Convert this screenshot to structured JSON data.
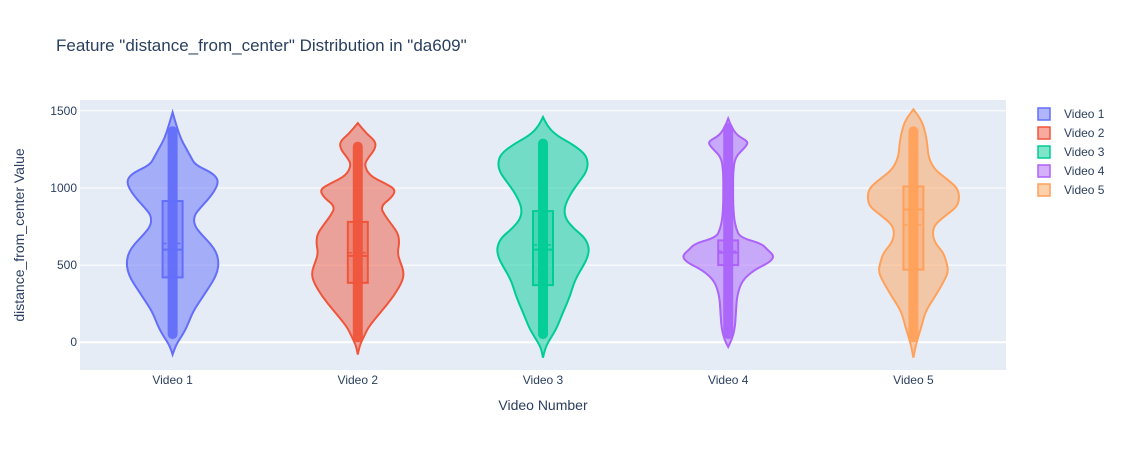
{
  "chart_data": {
    "type": "violin",
    "title": "Feature \"distance_from_center\" Distribution in \"da609\"",
    "xlabel": "Video Number",
    "ylabel": "distance_from_center Value",
    "categories": [
      "Video 1",
      "Video 2",
      "Video 3",
      "Video 4",
      "Video 5"
    ],
    "yticks": [
      0,
      500,
      1000,
      1500
    ],
    "ylim": [
      -180,
      1570
    ],
    "grid": true,
    "legend_position": "top-right",
    "series": [
      {
        "name": "Video 1",
        "color": "#636efa",
        "q1": 420,
        "median": 600,
        "mean": 640,
        "q3": 915,
        "min": -80,
        "max": 1490,
        "points_range": [
          20,
          1400
        ],
        "density": [
          [
            -80,
            0
          ],
          [
            -20,
            3
          ],
          [
            40,
            9
          ],
          [
            100,
            14
          ],
          [
            200,
            20
          ],
          [
            300,
            30
          ],
          [
            400,
            40
          ],
          [
            460,
            44
          ],
          [
            520,
            45
          ],
          [
            580,
            43
          ],
          [
            640,
            37
          ],
          [
            700,
            28
          ],
          [
            760,
            21
          ],
          [
            820,
            21
          ],
          [
            870,
            27
          ],
          [
            920,
            34
          ],
          [
            970,
            40
          ],
          [
            1020,
            44
          ],
          [
            1060,
            44
          ],
          [
            1100,
            38
          ],
          [
            1150,
            22
          ],
          [
            1200,
            18
          ],
          [
            1260,
            13
          ],
          [
            1320,
            8
          ],
          [
            1400,
            4
          ],
          [
            1490,
            0
          ]
        ]
      },
      {
        "name": "Video 2",
        "color": "#ef553b",
        "q1": 385,
        "median": 560,
        "mean": 580,
        "q3": 780,
        "min": -80,
        "max": 1420,
        "points_range": [
          0,
          1300
        ],
        "density": [
          [
            -80,
            0
          ],
          [
            -20,
            2
          ],
          [
            40,
            7
          ],
          [
            100,
            12
          ],
          [
            200,
            26
          ],
          [
            300,
            40
          ],
          [
            400,
            50
          ],
          [
            460,
            51
          ],
          [
            520,
            47
          ],
          [
            580,
            44
          ],
          [
            640,
            46
          ],
          [
            700,
            45
          ],
          [
            760,
            38
          ],
          [
            820,
            30
          ],
          [
            880,
            25
          ],
          [
            940,
            38
          ],
          [
            990,
            42
          ],
          [
            1030,
            30
          ],
          [
            1080,
            13
          ],
          [
            1150,
            7
          ],
          [
            1200,
            12
          ],
          [
            1250,
            19
          ],
          [
            1300,
            20
          ],
          [
            1350,
            10
          ],
          [
            1420,
            0
          ]
        ]
      },
      {
        "name": "Video 3",
        "color": "#00cc96",
        "q1": 370,
        "median": 600,
        "mean": 630,
        "q3": 850,
        "min": -100,
        "max": 1460,
        "points_range": [
          20,
          1320
        ],
        "density": [
          [
            -100,
            0
          ],
          [
            -30,
            3
          ],
          [
            40,
            12
          ],
          [
            100,
            19
          ],
          [
            200,
            27
          ],
          [
            300,
            36
          ],
          [
            400,
            42
          ],
          [
            500,
            54
          ],
          [
            560,
            60
          ],
          [
            620,
            61
          ],
          [
            680,
            55
          ],
          [
            740,
            40
          ],
          [
            800,
            30
          ],
          [
            860,
            28
          ],
          [
            920,
            32
          ],
          [
            980,
            39
          ],
          [
            1040,
            48
          ],
          [
            1100,
            57
          ],
          [
            1160,
            60
          ],
          [
            1220,
            56
          ],
          [
            1280,
            40
          ],
          [
            1340,
            18
          ],
          [
            1400,
            6
          ],
          [
            1460,
            0
          ]
        ]
      },
      {
        "name": "Video 4",
        "color": "#ab63fa",
        "q1": 500,
        "median": 580,
        "mean": 590,
        "q3": 660,
        "min": -30,
        "max": 1450,
        "points_range": [
          20,
          1420
        ],
        "density": [
          [
            -30,
            0
          ],
          [
            20,
            4
          ],
          [
            100,
            7
          ],
          [
            200,
            8
          ],
          [
            300,
            9
          ],
          [
            400,
            14
          ],
          [
            470,
            27
          ],
          [
            520,
            43
          ],
          [
            560,
            47
          ],
          [
            600,
            40
          ],
          [
            640,
            34
          ],
          [
            680,
            12
          ],
          [
            740,
            8
          ],
          [
            800,
            6
          ],
          [
            900,
            5
          ],
          [
            1000,
            5
          ],
          [
            1100,
            5
          ],
          [
            1200,
            7
          ],
          [
            1260,
            17
          ],
          [
            1300,
            21
          ],
          [
            1340,
            9
          ],
          [
            1400,
            3
          ],
          [
            1450,
            0
          ]
        ]
      },
      {
        "name": "Video 5",
        "color": "#ffa15a",
        "q1": 470,
        "median": 860,
        "mean": 760,
        "q3": 1010,
        "min": -100,
        "max": 1510,
        "points_range": [
          0,
          1400
        ],
        "density": [
          [
            -100,
            0
          ],
          [
            -30,
            2
          ],
          [
            40,
            5
          ],
          [
            100,
            8
          ],
          [
            200,
            12
          ],
          [
            300,
            22
          ],
          [
            400,
            31
          ],
          [
            460,
            35
          ],
          [
            520,
            33
          ],
          [
            580,
            30
          ],
          [
            640,
            22
          ],
          [
            700,
            19
          ],
          [
            760,
            21
          ],
          [
            820,
            32
          ],
          [
            880,
            44
          ],
          [
            940,
            46
          ],
          [
            1000,
            44
          ],
          [
            1060,
            33
          ],
          [
            1120,
            21
          ],
          [
            1200,
            15
          ],
          [
            1280,
            14
          ],
          [
            1360,
            12
          ],
          [
            1440,
            8
          ],
          [
            1510,
            0
          ]
        ]
      }
    ]
  }
}
